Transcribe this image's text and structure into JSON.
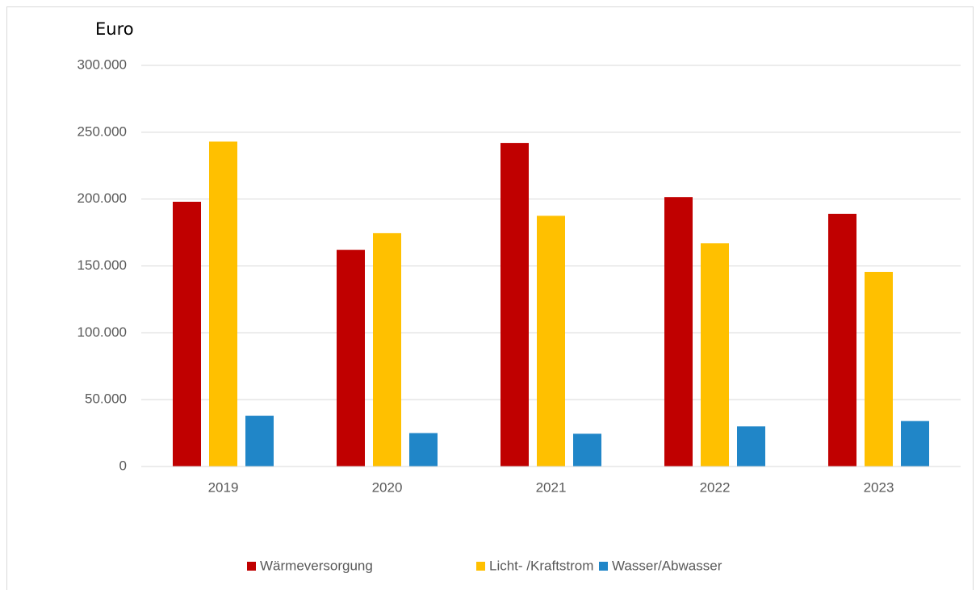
{
  "chart_data": {
    "type": "bar",
    "y_axis_label": "Euro",
    "categories": [
      "2019",
      "2020",
      "2021",
      "2022",
      "2023"
    ],
    "series": [
      {
        "name": "Wärmeversorgung",
        "color": "#c00000",
        "values": [
          198000,
          162000,
          242000,
          201500,
          189000
        ]
      },
      {
        "name": "Licht- /Kraftstrom",
        "color": "#ffc000",
        "values": [
          243000,
          174500,
          187500,
          167000,
          145500
        ]
      },
      {
        "name": "Wasser/Abwasser",
        "color": "#2086c8",
        "values": [
          38000,
          25000,
          24500,
          30000,
          34000
        ]
      }
    ],
    "ylim": [
      0,
      300000
    ],
    "yticks": [
      0,
      {
        "value": 50000,
        "label": "50.000"
      },
      {
        "value": 100000,
        "label": "100.000"
      },
      {
        "value": 150000,
        "label": "150.000"
      },
      {
        "value": 200000,
        "label": "200.000"
      },
      {
        "value": 250000,
        "label": "250.000"
      },
      {
        "value": 300000,
        "label": "300.000"
      }
    ],
    "grid": true,
    "legend": "bottom"
  }
}
